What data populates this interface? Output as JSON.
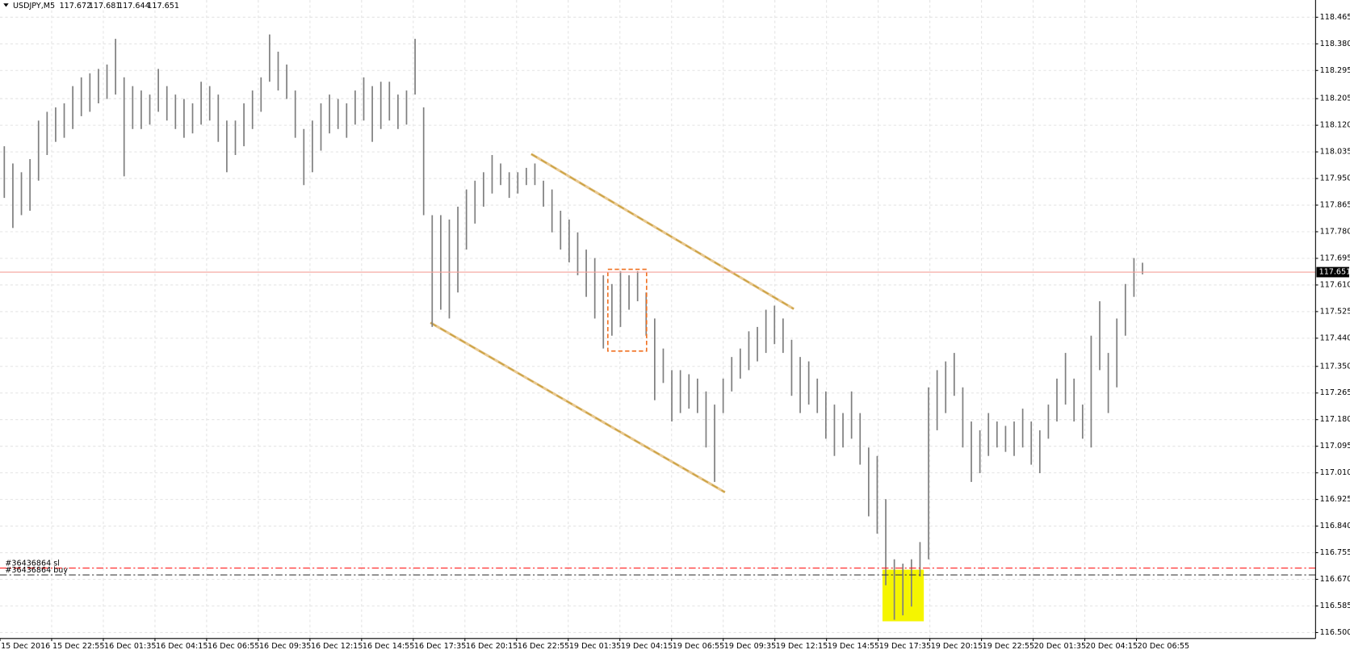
{
  "chart_data": {
    "type": "range-bar",
    "symbol": "USDJPY,M5",
    "header_prices": [
      117.672,
      117.681,
      117.644,
      117.651
    ],
    "bar_color": "#7f7f7f",
    "grid": true,
    "ylim": [
      116.481,
      118.52
    ],
    "yticks": [
      {
        "value": 116.5,
        "label": "116.500"
      },
      116.585,
      {
        "value": 116.67,
        "label": "116.670"
      },
      116.755,
      {
        "value": 116.84,
        "label": "116.840"
      },
      116.925,
      {
        "value": 117.01,
        "label": "117.010"
      },
      117.095,
      {
        "value": 117.18,
        "label": "117.180"
      },
      117.265,
      {
        "value": 117.35,
        "label": "117.350"
      },
      {
        "value": 117.44,
        "label": "117.440"
      },
      117.525,
      {
        "value": 117.61,
        "label": "117.610"
      },
      117.695,
      {
        "value": 117.78,
        "label": "117.780"
      },
      117.865,
      {
        "value": 117.95,
        "label": "117.950"
      },
      118.035,
      {
        "value": 118.12,
        "label": "118.120"
      },
      118.205,
      118.295,
      {
        "value": 118.38,
        "label": "118.380"
      },
      118.465
    ],
    "xtick_labels": [
      "15 Dec 2016",
      "15 Dec 22:55",
      "16 Dec 01:35",
      "16 Dec 04:15",
      "16 Dec 06:55",
      "16 Dec 09:35",
      "16 Dec 12:15",
      "16 Dec 14:55",
      "16 Dec 17:35",
      "16 Dec 20:15",
      "16 Dec 22:55",
      "19 Dec 01:35",
      "19 Dec 04:15",
      "19 Dec 06:55",
      "19 Dec 09:35",
      "19 Dec 12:15",
      "19 Dec 14:55",
      "19 Dec 17:35",
      "19 Dec 20:15",
      "19 Dec 22:55",
      "20 Dec 01:35",
      "20 Dec 04:15",
      "20 Dec 06:55"
    ],
    "high": [
      118.053,
      117.998,
      117.97,
      118.012,
      118.135,
      118.163,
      118.177,
      118.19,
      118.245,
      118.273,
      118.286,
      118.3,
      118.314,
      118.396,
      118.273,
      118.245,
      118.231,
      118.218,
      118.3,
      118.245,
      118.218,
      118.204,
      118.19,
      118.259,
      118.245,
      118.218,
      118.135,
      118.135,
      118.19,
      118.231,
      118.273,
      118.41,
      118.355,
      118.314,
      118.231,
      118.108,
      118.135,
      118.19,
      118.218,
      118.204,
      118.19,
      118.231,
      118.273,
      118.245,
      118.259,
      118.259,
      118.218,
      118.231,
      118.396,
      118.177,
      117.833,
      117.833,
      117.819,
      117.86,
      117.915,
      117.943,
      117.97,
      118.025,
      117.998,
      117.97,
      117.97,
      117.984,
      117.998,
      117.943,
      117.915,
      117.847,
      117.819,
      117.778,
      117.723,
      117.696,
      117.641,
      117.613,
      117.654,
      117.641,
      117.654,
      117.586,
      117.503,
      117.407,
      117.338,
      117.338,
      117.325,
      117.311,
      117.27,
      117.228,
      117.311,
      117.38,
      117.407,
      117.462,
      117.476,
      117.531,
      117.544,
      117.503,
      117.435,
      117.38,
      117.366,
      117.311,
      117.27,
      117.228,
      117.201,
      117.27,
      117.201,
      117.091,
      117.064,
      116.926,
      116.734,
      116.72,
      116.734,
      116.789,
      117.283,
      117.338,
      117.366,
      117.393,
      117.283,
      117.174,
      117.146,
      117.201,
      117.174,
      117.16,
      117.174,
      117.215,
      117.174,
      117.146,
      117.228,
      117.311,
      117.393,
      117.311,
      117.228,
      117.448,
      117.558,
      117.393,
      117.503,
      117.613,
      117.696,
      117.681
    ],
    "low": [
      117.888,
      117.792,
      117.833,
      117.847,
      117.943,
      118.025,
      118.067,
      118.08,
      118.108,
      118.149,
      118.163,
      118.19,
      118.204,
      118.218,
      117.957,
      118.108,
      118.108,
      118.122,
      118.163,
      118.135,
      118.108,
      118.08,
      118.094,
      118.122,
      118.135,
      118.067,
      117.97,
      118.025,
      118.053,
      118.108,
      118.163,
      118.259,
      118.231,
      118.204,
      118.08,
      117.929,
      117.97,
      118.039,
      118.094,
      118.108,
      118.08,
      118.122,
      118.135,
      118.067,
      118.108,
      118.135,
      118.108,
      118.122,
      118.218,
      117.833,
      117.476,
      117.531,
      117.503,
      117.586,
      117.723,
      117.806,
      117.86,
      117.902,
      117.929,
      117.888,
      117.902,
      117.929,
      117.929,
      117.86,
      117.778,
      117.723,
      117.682,
      117.641,
      117.572,
      117.503,
      117.407,
      117.448,
      117.476,
      117.531,
      117.558,
      117.448,
      117.242,
      117.297,
      117.174,
      117.201,
      117.215,
      117.201,
      117.091,
      116.981,
      117.201,
      117.27,
      117.311,
      117.338,
      117.366,
      117.393,
      117.421,
      117.393,
      117.256,
      117.201,
      117.228,
      117.201,
      117.119,
      117.064,
      117.091,
      117.119,
      117.036,
      116.871,
      116.816,
      116.651,
      116.541,
      116.555,
      116.583,
      116.679,
      116.734,
      117.146,
      117.201,
      117.256,
      117.091,
      116.981,
      117.009,
      117.064,
      117.091,
      117.077,
      117.064,
      117.091,
      117.036,
      117.009,
      117.119,
      117.174,
      117.228,
      117.174,
      117.119,
      117.091,
      117.338,
      117.201,
      117.283,
      117.448,
      117.572,
      117.644
    ],
    "bid": 117.651,
    "bid_color": "#f4a09a",
    "orders": [
      {
        "label": "#36436864 sl",
        "price": 116.706,
        "color": "#ff2020"
      },
      {
        "label": "#36436864 buy",
        "price": 116.684,
        "color": "#404040"
      }
    ]
  }
}
